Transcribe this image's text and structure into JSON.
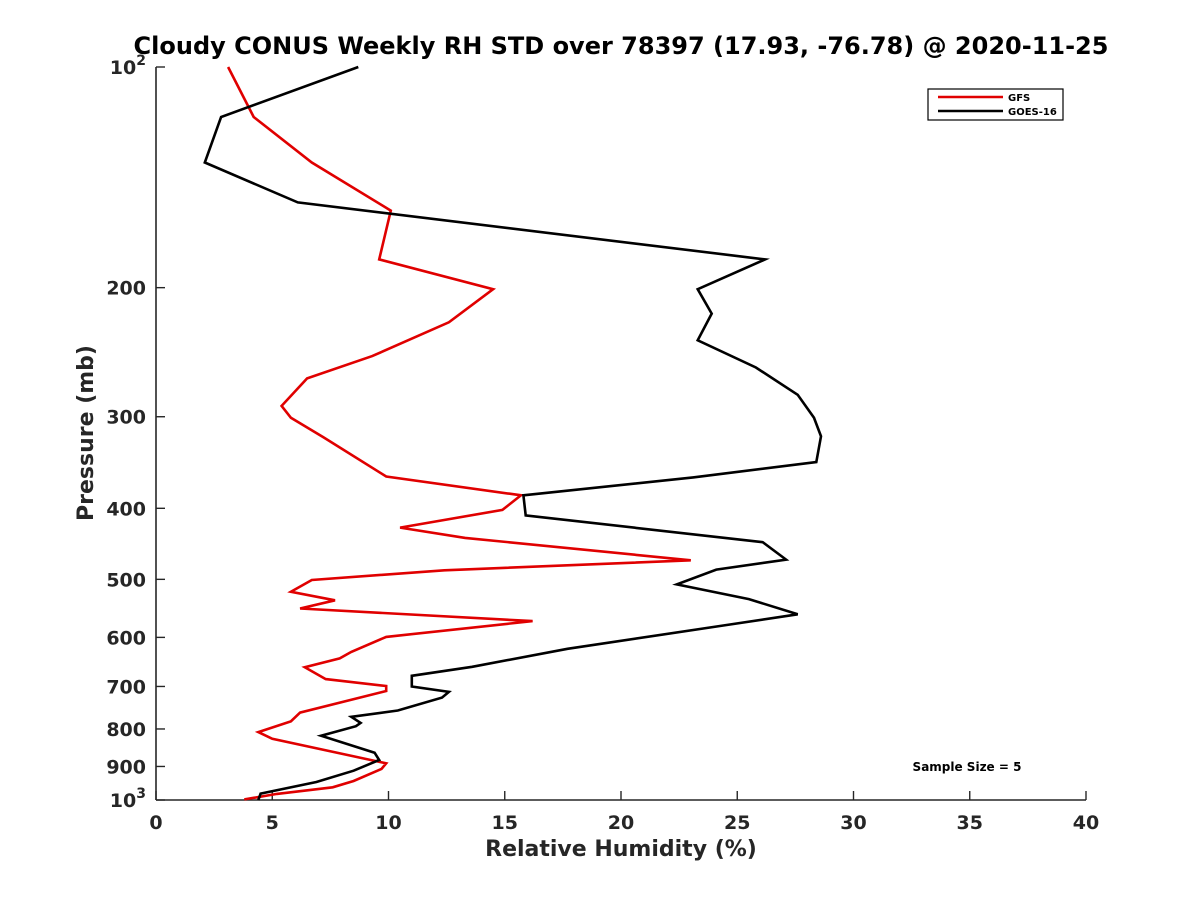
{
  "chart_data": {
    "type": "line",
    "title": "Cloudy CONUS Weekly RH STD over 78397 (17.93, -76.78) @ 2020-11-25",
    "xlabel": "Relative Humidity (%)",
    "ylabel": "Pressure (mb)",
    "xlim": [
      0,
      40
    ],
    "ylim": [
      100,
      1000
    ],
    "y_scale": "log",
    "y_reversed": true,
    "grid": false,
    "legend_position": "top-right",
    "x_ticks": [
      "0",
      "5",
      "10",
      "15",
      "20",
      "25",
      "30",
      "35",
      "40"
    ],
    "y_ticks": [
      {
        "value": 100,
        "base": "10",
        "exp": "2"
      },
      {
        "value": 200,
        "label": "200"
      },
      {
        "value": 300,
        "label": "300"
      },
      {
        "value": 400,
        "label": "400"
      },
      {
        "value": 500,
        "label": "500"
      },
      {
        "value": 600,
        "label": "600"
      },
      {
        "value": 700,
        "label": "700"
      },
      {
        "value": 800,
        "label": "800"
      },
      {
        "value": 900,
        "label": "900"
      },
      {
        "value": 1000,
        "base": "10",
        "exp": "3"
      }
    ],
    "annotation": "Sample Size = 5",
    "series": [
      {
        "name": "GFS",
        "color": "#e00000",
        "points": [
          [
            3.1,
            100
          ],
          [
            4.2,
            117
          ],
          [
            6.7,
            135
          ],
          [
            10.1,
            157
          ],
          [
            9.6,
            183
          ],
          [
            14.5,
            201
          ],
          [
            12.6,
            223
          ],
          [
            9.3,
            248
          ],
          [
            6.5,
            266
          ],
          [
            5.4,
            290
          ],
          [
            5.8,
            301
          ],
          [
            7.2,
            320
          ],
          [
            9.9,
            362
          ],
          [
            15.7,
            384
          ],
          [
            14.9,
            402
          ],
          [
            10.5,
            425
          ],
          [
            13.3,
            439
          ],
          [
            23.0,
            471
          ],
          [
            12.4,
            486
          ],
          [
            6.7,
            501
          ],
          [
            5.8,
            520
          ],
          [
            7.7,
            534
          ],
          [
            6.2,
            548
          ],
          [
            16.2,
            570
          ],
          [
            9.9,
            599
          ],
          [
            8.4,
            628
          ],
          [
            7.9,
            641
          ],
          [
            6.4,
            659
          ],
          [
            7.3,
            684
          ],
          [
            9.9,
            699
          ],
          [
            9.9,
            710
          ],
          [
            6.2,
            760
          ],
          [
            5.8,
            781
          ],
          [
            4.4,
            808
          ],
          [
            5.0,
            825
          ],
          [
            9.9,
            891
          ],
          [
            9.7,
            907
          ],
          [
            8.5,
            942
          ],
          [
            7.6,
            961
          ],
          [
            5.2,
            981
          ],
          [
            3.8,
            998
          ]
        ]
      },
      {
        "name": "GOES-16",
        "color": "#000000",
        "points": [
          [
            8.7,
            100
          ],
          [
            2.8,
            117
          ],
          [
            2.1,
            135
          ],
          [
            6.1,
            153
          ],
          [
            26.2,
            183
          ],
          [
            23.3,
            201
          ],
          [
            23.9,
            217
          ],
          [
            23.3,
            236
          ],
          [
            25.8,
            257
          ],
          [
            27.6,
            280
          ],
          [
            28.3,
            301
          ],
          [
            28.6,
            319
          ],
          [
            28.4,
            346
          ],
          [
            23.1,
            363
          ],
          [
            15.8,
            384
          ],
          [
            15.9,
            409
          ],
          [
            26.1,
            445
          ],
          [
            27.1,
            470
          ],
          [
            24.1,
            485
          ],
          [
            22.4,
            508
          ],
          [
            25.5,
            532
          ],
          [
            27.6,
            558
          ],
          [
            24.4,
            578
          ],
          [
            17.7,
            622
          ],
          [
            13.6,
            658
          ],
          [
            11.0,
            677
          ],
          [
            11.0,
            700
          ],
          [
            12.6,
            712
          ],
          [
            12.3,
            725
          ],
          [
            10.4,
            755
          ],
          [
            8.4,
            770
          ],
          [
            8.8,
            785
          ],
          [
            8.6,
            793
          ],
          [
            7.1,
            817
          ],
          [
            9.4,
            862
          ],
          [
            9.6,
            882
          ],
          [
            8.5,
            912
          ],
          [
            6.9,
            945
          ],
          [
            4.5,
            980
          ],
          [
            4.4,
            1000
          ]
        ]
      }
    ]
  }
}
